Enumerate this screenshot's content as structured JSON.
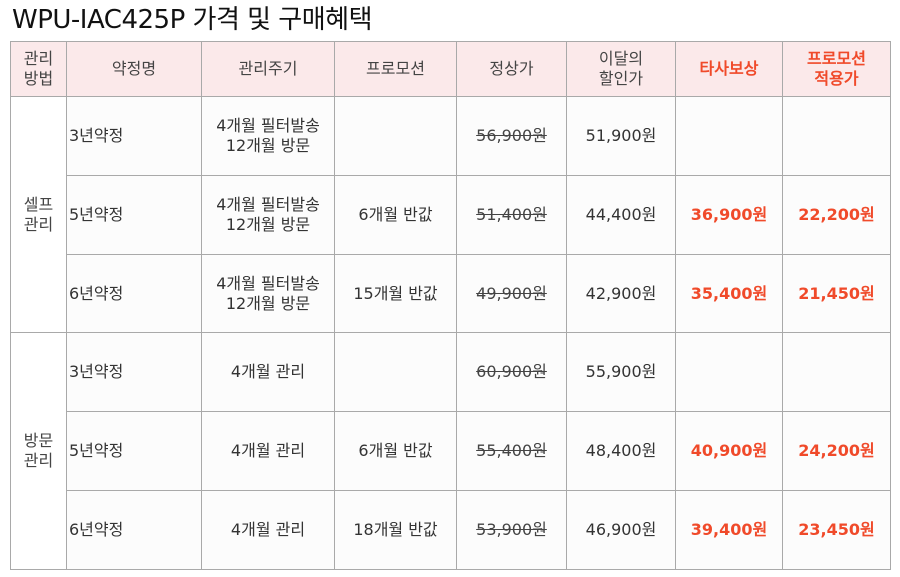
{
  "title": "WPU-IAC425P 가격 및 구매혜택",
  "headers": {
    "method": [
      "관리",
      "방법"
    ],
    "plan": "약정명",
    "cycle": "관리주기",
    "promo": "프로모션",
    "regular": "정상가",
    "discount": [
      "이달의",
      "할인가"
    ],
    "tradein": "타사보상",
    "promo_applied": [
      "프로모션",
      "적용가"
    ]
  },
  "groups": [
    {
      "label": [
        "셀프",
        "관리"
      ],
      "rows": [
        {
          "plan": "3년약정",
          "cycle": [
            "4개월 필터발송",
            "12개월 방문"
          ],
          "promo": "",
          "regular": "56,900원",
          "discount": "51,900원",
          "tradein": "",
          "promo_price": ""
        },
        {
          "plan": "5년약정",
          "cycle": [
            "4개월 필터발송",
            "12개월 방문"
          ],
          "promo": "6개월 반값",
          "regular": "51,400원",
          "discount": "44,400원",
          "tradein": "36,900원",
          "promo_price": "22,200원"
        },
        {
          "plan": "6년약정",
          "cycle": [
            "4개월 필터발송",
            "12개월 방문"
          ],
          "promo": "15개월 반값",
          "regular": "49,900원",
          "discount": "42,900원",
          "tradein": "35,400원",
          "promo_price": "21,450원"
        }
      ]
    },
    {
      "label": [
        "방문",
        "관리"
      ],
      "rows": [
        {
          "plan": "3년약정",
          "cycle": [
            "4개월 관리"
          ],
          "promo": "",
          "regular": "60,900원",
          "discount": "55,900원",
          "tradein": "",
          "promo_price": ""
        },
        {
          "plan": "5년약정",
          "cycle": [
            "4개월 관리"
          ],
          "promo": "6개월 반값",
          "regular": "55,400원",
          "discount": "48,400원",
          "tradein": "40,900원",
          "promo_price": "24,200원"
        },
        {
          "plan": "6년약정",
          "cycle": [
            "4개월 관리"
          ],
          "promo": "18개월 반값",
          "regular": "53,900원",
          "discount": "46,900원",
          "tradein": "39,400원",
          "promo_price": "23,450원"
        }
      ]
    }
  ],
  "colors": {
    "header_bg": "#fbe9ea",
    "highlight": "#f04a2a",
    "border": "#a9a9a9"
  }
}
